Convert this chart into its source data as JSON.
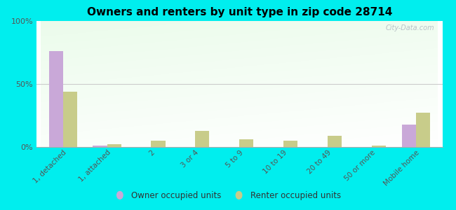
{
  "title": "Owners and renters by unit type in zip code 28714",
  "categories": [
    "1, detached",
    "1, attached",
    "2",
    "3 or 4",
    "5 to 9",
    "10 to 19",
    "20 to 49",
    "50 or more",
    "Mobile home"
  ],
  "owner_values": [
    76,
    1,
    0,
    0,
    0,
    0,
    0,
    0,
    18
  ],
  "renter_values": [
    44,
    2,
    5,
    13,
    6,
    5,
    9,
    1,
    27
  ],
  "owner_color": "#c9a8d8",
  "renter_color": "#c8cc8a",
  "background_color": "#00eeee",
  "ylabel_ticks": [
    "0%",
    "50%",
    "100%"
  ],
  "ytick_vals": [
    0,
    50,
    100
  ],
  "ylim": [
    0,
    100
  ],
  "legend_owner": "Owner occupied units",
  "legend_renter": "Renter occupied units",
  "bar_width": 0.32,
  "watermark": "City-Data.com"
}
